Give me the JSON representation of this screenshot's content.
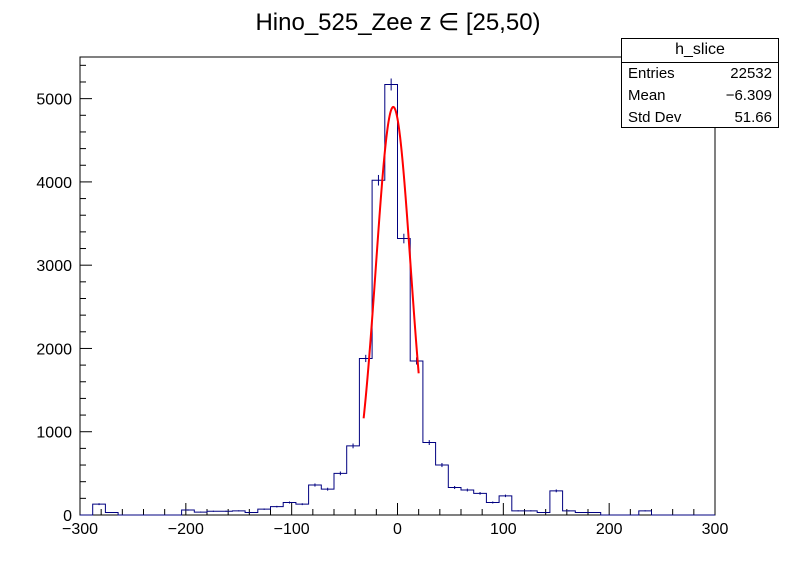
{
  "chart_data": {
    "type": "histogram",
    "title": "Hino_525_Zee z  ∈ [25,50)",
    "xlabel": "",
    "ylabel": "",
    "xlim": [
      -300,
      300
    ],
    "ylim": [
      0,
      5500
    ],
    "x_ticks": [
      -300,
      -200,
      -100,
      0,
      100,
      200,
      300
    ],
    "y_ticks": [
      0,
      1000,
      2000,
      3000,
      4000,
      5000
    ],
    "grid": false,
    "bin_width": 12,
    "bin_edges_start": -300,
    "bin_counts": [
      0,
      130,
      30,
      0,
      0,
      0,
      0,
      0,
      60,
      35,
      45,
      45,
      50,
      30,
      70,
      100,
      150,
      130,
      360,
      310,
      500,
      830,
      1880,
      4020,
      5170,
      3320,
      1850,
      870,
      600,
      330,
      300,
      260,
      150,
      230,
      50,
      50,
      30,
      290,
      50,
      30,
      30,
      0,
      0,
      0,
      50,
      0,
      0,
      0,
      0,
      0
    ],
    "histogram_color": "#000080",
    "fit": {
      "name": "gaus",
      "color": "#ff0000",
      "amplitude": 4900,
      "mean": -4,
      "sigma": 16.5,
      "x_range": [
        -32,
        20
      ]
    },
    "stats_box": {
      "title": "h_slice",
      "position": "top-right",
      "rows": [
        {
          "label": "Entries",
          "value": "22532"
        },
        {
          "label": "Mean",
          "value": "−6.309"
        },
        {
          "label": "Std Dev",
          "value": "51.66"
        }
      ]
    }
  }
}
